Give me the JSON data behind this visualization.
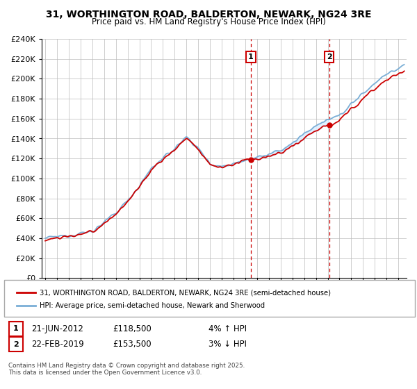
{
  "title_line1": "31, WORTHINGTON ROAD, BALDERTON, NEWARK, NG24 3RE",
  "title_line2": "Price paid vs. HM Land Registry's House Price Index (HPI)",
  "legend_line1": "31, WORTHINGTON ROAD, BALDERTON, NEWARK, NG24 3RE (semi-detached house)",
  "legend_line2": "HPI: Average price, semi-detached house, Newark and Sherwood",
  "annotation1_label": "1",
  "annotation1_date": "21-JUN-2012",
  "annotation1_price": "£118,500",
  "annotation1_hpi": "4% ↑ HPI",
  "annotation2_label": "2",
  "annotation2_date": "22-FEB-2019",
  "annotation2_price": "£153,500",
  "annotation2_hpi": "3% ↓ HPI",
  "footnote": "Contains HM Land Registry data © Crown copyright and database right 2025.\nThis data is licensed under the Open Government Licence v3.0.",
  "sale1_year": 2012.47,
  "sale1_price": 118500,
  "sale2_year": 2019.13,
  "sale2_price": 153500,
  "hpi_color": "#7aaed6",
  "price_color": "#cc0000",
  "shaded_color": "#ddeeff",
  "vline_color": "#cc0000",
  "background_color": "#ffffff",
  "ylim_min": 0,
  "ylim_max": 240000,
  "ytick_step": 20000,
  "seed": 12345
}
